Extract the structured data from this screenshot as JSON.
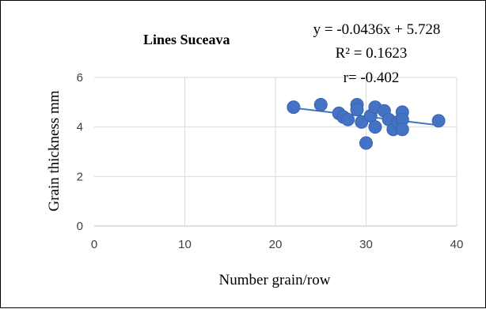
{
  "chart_data": {
    "type": "scatter",
    "title": "Lines Suceava",
    "xlabel": "Number grain/row",
    "ylabel": "Grain thickness  mm",
    "xlim": [
      0,
      40
    ],
    "ylim": [
      0,
      6
    ],
    "x_ticks": [
      0,
      10,
      20,
      30,
      40
    ],
    "y_ticks": [
      0,
      2,
      4,
      6
    ],
    "grid": true,
    "legend": "none",
    "annotations": [
      "y = -0.0436x + 5.728",
      "R² = 0.1623",
      "r= -0.402"
    ],
    "trendline": {
      "slope": -0.0436,
      "intercept": 5.728,
      "x_range": [
        22,
        38
      ]
    },
    "series": [
      {
        "points": [
          {
            "x": 22,
            "y": 4.8
          },
          {
            "x": 25,
            "y": 4.9
          },
          {
            "x": 27,
            "y": 4.55
          },
          {
            "x": 27.5,
            "y": 4.4
          },
          {
            "x": 28,
            "y": 4.3
          },
          {
            "x": 29,
            "y": 4.9
          },
          {
            "x": 29,
            "y": 4.7
          },
          {
            "x": 29.5,
            "y": 4.2
          },
          {
            "x": 30,
            "y": 3.35
          },
          {
            "x": 30.5,
            "y": 4.45
          },
          {
            "x": 31,
            "y": 4.8
          },
          {
            "x": 31,
            "y": 4.0
          },
          {
            "x": 32,
            "y": 4.65
          },
          {
            "x": 32.5,
            "y": 4.3
          },
          {
            "x": 33,
            "y": 3.9
          },
          {
            "x": 33.5,
            "y": 4.2
          },
          {
            "x": 34,
            "y": 4.6
          },
          {
            "x": 34,
            "y": 4.3
          },
          {
            "x": 34,
            "y": 3.9
          },
          {
            "x": 38,
            "y": 4.25
          }
        ]
      }
    ],
    "colors": {
      "marker": "#4472C4",
      "trendline": "#4472C4",
      "grid": "#D9D9D9"
    }
  }
}
